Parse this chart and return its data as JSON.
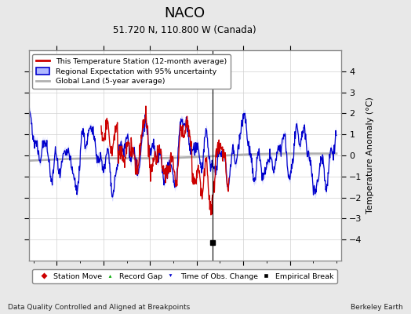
{
  "title": "NACO",
  "subtitle": "51.720 N, 110.800 W (Canada)",
  "ylabel": "Temperature Anomaly (°C)",
  "xlabel_note": "Data Quality Controlled and Aligned at Breakpoints",
  "credit": "Berkeley Earth",
  "xlim": [
    1914,
    1981
  ],
  "ylim": [
    -5,
    5
  ],
  "yticks": [
    -4,
    -3,
    -2,
    -1,
    0,
    1,
    2,
    3,
    4
  ],
  "xticks": [
    1920,
    1930,
    1940,
    1950,
    1960,
    1970
  ],
  "background_color": "#e8e8e8",
  "plot_bg_color": "#ffffff",
  "red_color": "#cc0000",
  "blue_color": "#0000cc",
  "blue_fill_color": "#b0b8ff",
  "gray_color": "#b0b0b0",
  "grid_color": "#d0d0d0",
  "empirical_break_year": 1953.5,
  "empirical_break_value": -4.15,
  "seed": 42
}
